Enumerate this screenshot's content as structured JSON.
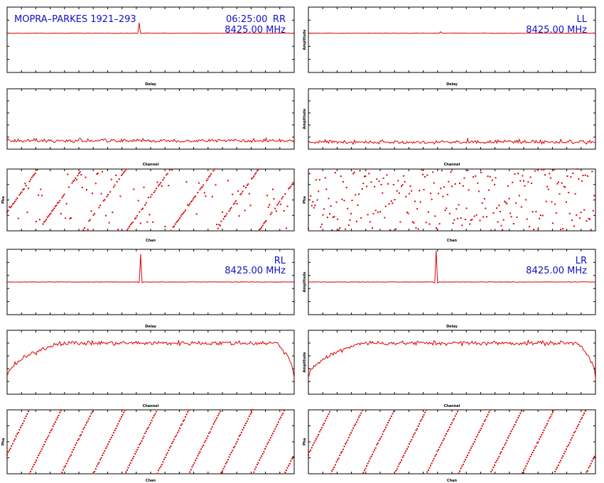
{
  "header": {
    "baseline": "MOPRA–PARKES 1921–293",
    "time": "06:25:00"
  },
  "colors": {
    "trace": "#dd0000",
    "annotation": "#1010c8",
    "frame": "#000000"
  },
  "chart_data": [
    {
      "pol": "RR",
      "frequency": "8425.00 MHz",
      "delay": {
        "type": "line",
        "xlabel": "Delay",
        "ylabel": "",
        "peak_position": 0.46,
        "peak_height": 0.35,
        "baseline_level": 0.5
      },
      "amplitude": {
        "type": "line",
        "xlabel": "Channel",
        "ylabel": "",
        "shape": "noise",
        "mean_level": 0.12
      },
      "phase": {
        "type": "scatter",
        "xlabel": "Chan",
        "ylabel": "Pha",
        "wraps": 6.5,
        "coherence": 0.65
      }
    },
    {
      "pol": "LL",
      "frequency": "8425.00 MHz",
      "delay": {
        "type": "line",
        "xlabel": "Delay",
        "ylabel": "Amplitude",
        "peak_position": 0.46,
        "peak_height": 0.05,
        "baseline_level": 0.5
      },
      "amplitude": {
        "type": "line",
        "xlabel": "Channel",
        "ylabel": "Amplitude",
        "shape": "noise",
        "mean_level": 0.1
      },
      "phase": {
        "type": "scatter",
        "xlabel": "Chan",
        "ylabel": "Pha",
        "wraps": 0,
        "coherence": 0.0
      }
    },
    {
      "pol": "RL",
      "frequency": "8425.00 MHz",
      "delay": {
        "type": "line",
        "xlabel": "Delay",
        "ylabel": "",
        "peak_position": 0.465,
        "peak_height": 0.95,
        "baseline_level": 0.5
      },
      "amplitude": {
        "type": "line",
        "xlabel": "Channel",
        "ylabel": "",
        "shape": "bandpass",
        "mean_level": 0.75
      },
      "phase": {
        "type": "scatter",
        "xlabel": "Chan",
        "ylabel": "Pha",
        "wraps": 9,
        "coherence": 1.0
      }
    },
    {
      "pol": "LR",
      "frequency": "8425.00 MHz",
      "delay": {
        "type": "line",
        "xlabel": "Delay",
        "ylabel": "Amplitude",
        "peak_position": 0.445,
        "peak_height": 1.2,
        "baseline_level": 0.5
      },
      "amplitude": {
        "type": "line",
        "xlabel": "Channel",
        "ylabel": "Amplitude",
        "shape": "bandpass",
        "mean_level": 0.75
      },
      "phase": {
        "type": "scatter",
        "xlabel": "Chan",
        "ylabel": "Pha",
        "wraps": 9,
        "coherence": 1.0
      }
    }
  ]
}
